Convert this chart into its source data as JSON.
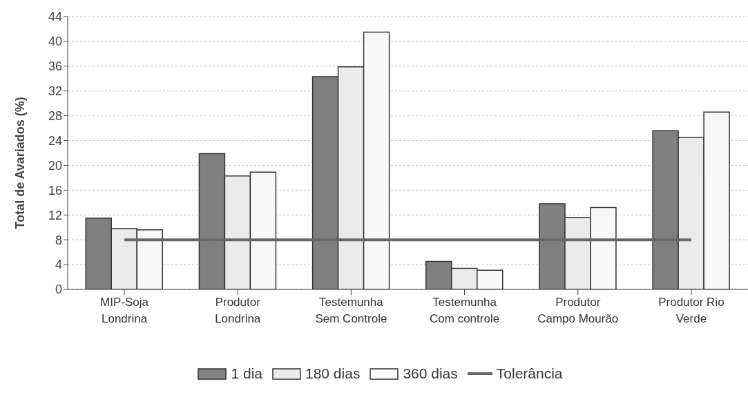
{
  "chart_data": {
    "type": "bar",
    "ylabel": "Total de Avariados (%)",
    "categories": [
      "MIP-Soja Londrina",
      "Produtor Londrina",
      "Testemunha Sem Controle",
      "Testemunha Com controle",
      "Produtor Campo Mourão",
      "Produtor Rio Verde"
    ],
    "series": [
      {
        "name": "1 dia",
        "color": "#808080",
        "values": [
          11.5,
          21.9,
          34.3,
          4.5,
          13.8,
          25.6
        ]
      },
      {
        "name": "180 dias",
        "color": "#ebebeb",
        "values": [
          9.8,
          18.3,
          35.9,
          3.4,
          11.6,
          24.5
        ]
      },
      {
        "name": "360 dias",
        "color": "#f8f8f8",
        "values": [
          9.6,
          18.9,
          41.5,
          3.1,
          13.2,
          28.6
        ]
      },
      {
        "name": "Tolerância",
        "type": "line",
        "color": "#666666",
        "values": [
          8,
          8,
          8,
          8,
          8,
          8
        ]
      }
    ],
    "ylim": [
      0,
      44
    ],
    "yticks": [
      0,
      4,
      8,
      12,
      16,
      20,
      24,
      28,
      32,
      36,
      40,
      44
    ],
    "grid": "y",
    "legend": "bottom",
    "marker": "none",
    "line_style": "solid"
  }
}
